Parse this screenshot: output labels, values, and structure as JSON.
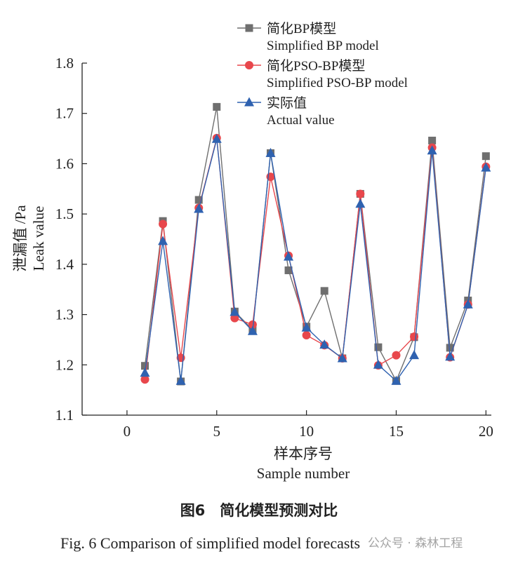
{
  "chart_data": {
    "type": "line",
    "title": "",
    "xlabel_cn": "样本序号",
    "xlabel_en": "Sample number",
    "ylabel_cn": "泄漏值 /Pa",
    "ylabel_en": "Leak value",
    "xlim": [
      -2.5,
      20.3
    ],
    "ylim": [
      1.1,
      1.8
    ],
    "xticks": [
      "0",
      "5",
      "10",
      "15",
      "20"
    ],
    "yticks": [
      "1.1",
      "1.2",
      "1.3",
      "1.4",
      "1.5",
      "1.6",
      "1.7",
      "1.8"
    ],
    "x": [
      1,
      2,
      3,
      4,
      5,
      6,
      7,
      8,
      9,
      10,
      11,
      12,
      13,
      14,
      15,
      16,
      17,
      18,
      19,
      20
    ],
    "legend_position": "top",
    "series": [
      {
        "name_cn": "简化BP模型",
        "name_en": "Simplified BP model",
        "marker": "square",
        "color": "#6f6f6f",
        "values": [
          1.198,
          1.486,
          1.167,
          1.528,
          1.713,
          1.306,
          1.27,
          1.621,
          1.388,
          1.276,
          1.347,
          1.213,
          1.54,
          1.235,
          1.168,
          1.255,
          1.646,
          1.234,
          1.328,
          1.615
        ]
      },
      {
        "name_cn": "简化PSO-BP模型",
        "name_en": "Simplified PSO-BP model",
        "marker": "circle",
        "color": "#e8474c",
        "values": [
          1.171,
          1.48,
          1.214,
          1.512,
          1.651,
          1.293,
          1.28,
          1.574,
          1.417,
          1.259,
          1.239,
          1.213,
          1.54,
          1.199,
          1.219,
          1.256,
          1.632,
          1.215,
          1.32,
          1.594
        ]
      },
      {
        "name_cn": "实际值",
        "name_en": "Actual value",
        "marker": "triangle",
        "color": "#2f62b0",
        "values": [
          1.184,
          1.446,
          1.168,
          1.51,
          1.649,
          1.305,
          1.267,
          1.621,
          1.415,
          1.274,
          1.24,
          1.213,
          1.52,
          1.2,
          1.168,
          1.219,
          1.626,
          1.216,
          1.32,
          1.592
        ]
      }
    ]
  },
  "caption": {
    "cn": "图6　简化模型预测对比",
    "en": "Fig. 6  Comparison of simplified model forecasts"
  },
  "watermark": "公众号 · 森林工程"
}
